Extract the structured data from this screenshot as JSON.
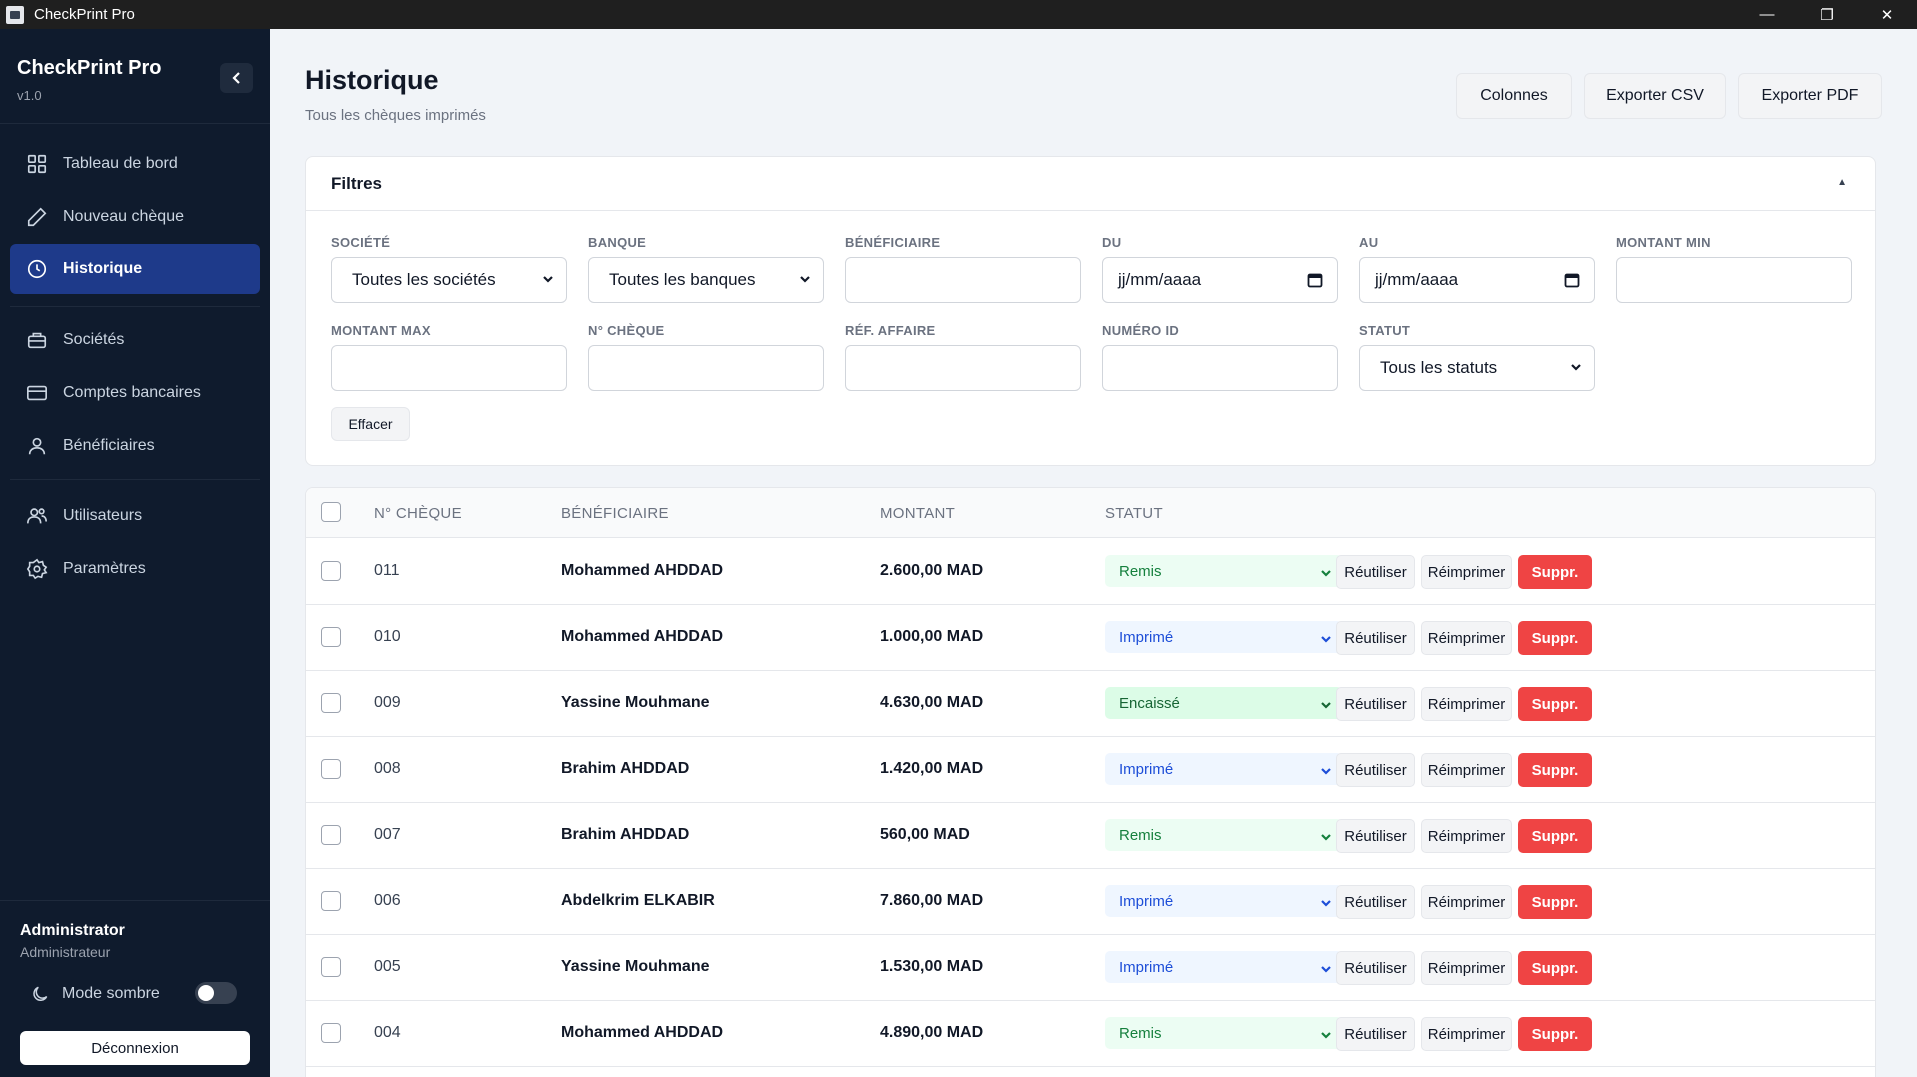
{
  "window": {
    "title": "CheckPrint Pro",
    "minimize": "—",
    "maximize": "❐",
    "close": "✕"
  },
  "sidebar": {
    "app_name": "CheckPrint Pro",
    "version": "v1.0",
    "items": [
      {
        "label": "Tableau de bord",
        "icon": "dashboard-icon"
      },
      {
        "label": "Nouveau chèque",
        "icon": "pencil-icon"
      },
      {
        "label": "Historique",
        "icon": "clock-icon",
        "active": true
      },
      {
        "label": "Sociétés",
        "icon": "briefcase-icon"
      },
      {
        "label": "Comptes bancaires",
        "icon": "credit-card-icon"
      },
      {
        "label": "Bénéficiaires",
        "icon": "user-icon"
      },
      {
        "label": "Utilisateurs",
        "icon": "users-icon"
      },
      {
        "label": "Paramètres",
        "icon": "gear-icon"
      }
    ],
    "user": {
      "name": "Administrator",
      "role": "Administrateur"
    },
    "dark_mode_label": "Mode sombre",
    "dark_mode_on": false,
    "logout_label": "Déconnexion"
  },
  "header": {
    "title": "Historique",
    "subtitle": "Tous les chèques imprimés",
    "buttons": {
      "columns": "Colonnes",
      "export_csv": "Exporter CSV",
      "export_pdf": "Exporter PDF"
    }
  },
  "filters": {
    "title": "Filtres",
    "societe": {
      "label": "SOCIÉTÉ",
      "value": "Toutes les sociétés"
    },
    "banque": {
      "label": "BANQUE",
      "value": "Toutes les banques"
    },
    "beneficiaire": {
      "label": "BÉNÉFICIAIRE",
      "value": ""
    },
    "du": {
      "label": "DU",
      "placeholder": "jj/mm/aaaa"
    },
    "au": {
      "label": "AU",
      "placeholder": "jj/mm/aaaa"
    },
    "montant_min": {
      "label": "MONTANT MIN",
      "value": ""
    },
    "montant_max": {
      "label": "MONTANT MAX",
      "value": ""
    },
    "n_cheque": {
      "label": "N° CHÈQUE",
      "value": ""
    },
    "ref_affaire": {
      "label": "RÉF. AFFAIRE",
      "value": ""
    },
    "numero_id": {
      "label": "NUMÉRO ID",
      "value": ""
    },
    "statut": {
      "label": "STATUT",
      "value": "Tous les statuts"
    },
    "clear_label": "Effacer"
  },
  "table": {
    "headers": {
      "num": "N° CHÈQUE",
      "beneficiaire": "BÉNÉFICIAIRE",
      "montant": "MONTANT",
      "statut": "STATUT"
    },
    "actions": {
      "reuse": "Réutiliser",
      "reprint": "Réimprimer",
      "delete": "Suppr."
    },
    "status_colors": {
      "Remis": "#15803d",
      "Imprimé": "#1d4ed8",
      "Encaissé": "#166534",
      "delete": "#ef4444"
    },
    "rows": [
      {
        "num": "011",
        "beneficiaire": "Mohammed AHDDAD",
        "montant": "2.600,00 MAD",
        "statut": "Remis"
      },
      {
        "num": "010",
        "beneficiaire": "Mohammed AHDDAD",
        "montant": "1.000,00 MAD",
        "statut": "Imprimé"
      },
      {
        "num": "009",
        "beneficiaire": "Yassine Mouhmane",
        "montant": "4.630,00 MAD",
        "statut": "Encaissé"
      },
      {
        "num": "008",
        "beneficiaire": "Brahim AHDDAD",
        "montant": "1.420,00 MAD",
        "statut": "Imprimé"
      },
      {
        "num": "007",
        "beneficiaire": "Brahim AHDDAD",
        "montant": "560,00 MAD",
        "statut": "Remis"
      },
      {
        "num": "006",
        "beneficiaire": "Abdelkrim ELKABIR",
        "montant": "7.860,00 MAD",
        "statut": "Imprimé"
      },
      {
        "num": "005",
        "beneficiaire": "Yassine Mouhmane",
        "montant": "1.530,00 MAD",
        "statut": "Imprimé"
      },
      {
        "num": "004",
        "beneficiaire": "Mohammed AHDDAD",
        "montant": "4.890,00 MAD",
        "statut": "Remis"
      }
    ]
  }
}
